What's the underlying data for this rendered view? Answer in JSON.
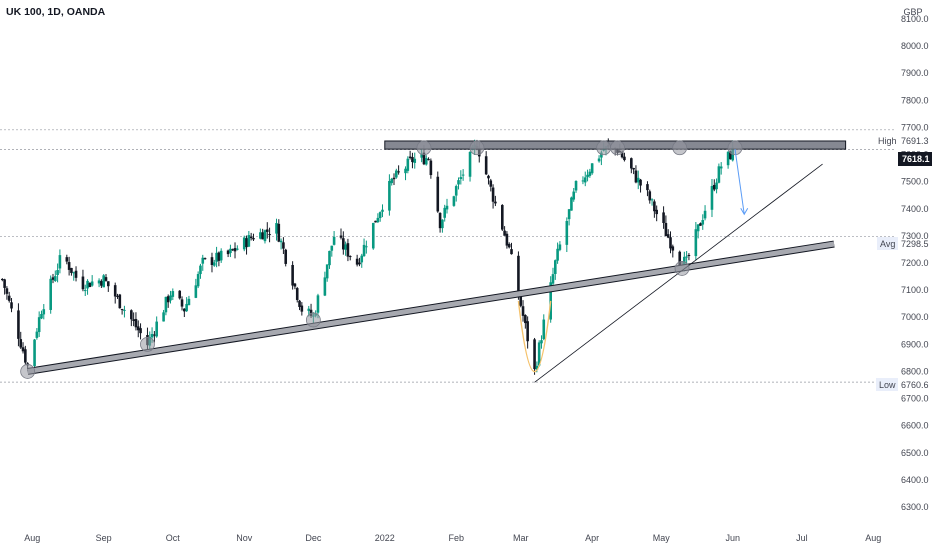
{
  "header": {
    "title": "UK 100, 1D, OANDA"
  },
  "price_axis": {
    "currency": "GBP",
    "ticks": [
      "8100.0",
      "8000.0",
      "7900.0",
      "7800.0",
      "7700.0",
      "7600.0",
      "7500.0",
      "7400.0",
      "7300.0",
      "7200.0",
      "7100.0",
      "7000.0",
      "6900.0",
      "6800.0",
      "6700.0",
      "6600.0",
      "6500.0",
      "6400.0",
      "6300.0"
    ],
    "tick_values": [
      8100,
      8000,
      7900,
      7800,
      7700,
      7600,
      7500,
      7400,
      7300,
      7200,
      7100,
      7000,
      6900,
      6800,
      6700,
      6600,
      6500,
      6400,
      6300
    ]
  },
  "time_axis": {
    "labels": [
      "Aug",
      "Sep",
      "Oct",
      "Nov",
      "Dec",
      "2022",
      "Feb",
      "Mar",
      "Apr",
      "May",
      "Jun",
      "Jul",
      "Aug"
    ],
    "dates": [
      "2021-08-01",
      "2021-09-01",
      "2021-10-01",
      "2021-11-01",
      "2021-12-01",
      "2022-01-01",
      "2022-02-01",
      "2022-03-01",
      "2022-04-01",
      "2022-05-01",
      "2022-06-01",
      "2022-07-01",
      "2022-08-01"
    ]
  },
  "markers": {
    "high": {
      "label": "High",
      "value_text": "7691.3",
      "value": 7691.3
    },
    "last": {
      "value_text": "7618.1",
      "value": 7618.1
    },
    "avg": {
      "label": "Avg",
      "value_text": "7298.5",
      "value": 7298.5
    },
    "low": {
      "label": "Low",
      "value_text": "6760.6",
      "value": 6760.6
    }
  },
  "colors": {
    "up": "#089981",
    "down": "#131722",
    "zone_fill": "#787b86",
    "zone_border": "#131722",
    "trendline": "#131722",
    "arrow": "#5b9cf6",
    "curve": "#f5c26b",
    "last_badge": "#131722",
    "axis_text": "#434651"
  },
  "chart_data": {
    "type": "candlestick",
    "title": "UK 100, 1D, OANDA",
    "ylim": [
      6230,
      8170
    ],
    "xlim": [
      "2021-07-18",
      "2022-08-10"
    ],
    "resistance_zone": {
      "upper": 7650,
      "lower": 7620,
      "from": "2022-01-01",
      "to": "2022-07-20"
    },
    "support_trendline": [
      {
        "date": "2021-07-30",
        "price": 6800
      },
      {
        "date": "2022-07-15",
        "price": 7270
      }
    ],
    "rising_trendline": [
      {
        "date": "2022-03-07",
        "price": 6760
      },
      {
        "date": "2022-07-10",
        "price": 7565
      }
    ],
    "projection_arrow": [
      {
        "date": "2022-06-02",
        "price": 7620
      },
      {
        "date": "2022-06-06",
        "price": 7380
      }
    ],
    "touch_points": [
      {
        "date": "2021-07-30",
        "price": 6800
      },
      {
        "date": "2021-09-20",
        "price": 6900
      },
      {
        "date": "2021-12-01",
        "price": 6990
      },
      {
        "date": "2022-01-18",
        "price": 7625
      },
      {
        "date": "2022-02-10",
        "price": 7625
      },
      {
        "date": "2022-04-06",
        "price": 7625
      },
      {
        "date": "2022-04-12",
        "price": 7625
      },
      {
        "date": "2022-05-09",
        "price": 7625
      },
      {
        "date": "2022-05-10",
        "price": 7180
      },
      {
        "date": "2022-06-02",
        "price": 7625
      }
    ],
    "curve_points": [
      {
        "date": "2022-02-28",
        "price": 7060
      },
      {
        "date": "2022-03-07",
        "price": 6760
      },
      {
        "date": "2022-03-14",
        "price": 7060
      }
    ],
    "path_keypoints": [
      {
        "date": "2021-07-19",
        "price": 7140
      },
      {
        "date": "2021-07-30",
        "price": 6820
      },
      {
        "date": "2021-08-05",
        "price": 7030
      },
      {
        "date": "2021-08-14",
        "price": 7230
      },
      {
        "date": "2021-08-22",
        "price": 7120
      },
      {
        "date": "2021-09-01",
        "price": 7140
      },
      {
        "date": "2021-09-10",
        "price": 7030
      },
      {
        "date": "2021-09-20",
        "price": 6900
      },
      {
        "date": "2021-09-30",
        "price": 7090
      },
      {
        "date": "2021-10-06",
        "price": 7030
      },
      {
        "date": "2021-10-14",
        "price": 7200
      },
      {
        "date": "2021-10-25",
        "price": 7230
      },
      {
        "date": "2021-11-05",
        "price": 7300
      },
      {
        "date": "2021-11-15",
        "price": 7330
      },
      {
        "date": "2021-11-26",
        "price": 7030
      },
      {
        "date": "2021-12-01",
        "price": 7000
      },
      {
        "date": "2021-12-10",
        "price": 7300
      },
      {
        "date": "2021-12-20",
        "price": 7200
      },
      {
        "date": "2022-01-04",
        "price": 7500
      },
      {
        "date": "2022-01-13",
        "price": 7580
      },
      {
        "date": "2022-01-20",
        "price": 7590
      },
      {
        "date": "2022-01-25",
        "price": 7350
      },
      {
        "date": "2022-02-10",
        "price": 7640
      },
      {
        "date": "2022-02-24",
        "price": 7250
      },
      {
        "date": "2022-03-07",
        "price": 6800
      },
      {
        "date": "2022-03-16",
        "price": 7200
      },
      {
        "date": "2022-03-25",
        "price": 7480
      },
      {
        "date": "2022-04-06",
        "price": 7620
      },
      {
        "date": "2022-04-12",
        "price": 7620
      },
      {
        "date": "2022-04-25",
        "price": 7450
      },
      {
        "date": "2022-05-09",
        "price": 7210
      },
      {
        "date": "2022-05-12",
        "price": 7200
      },
      {
        "date": "2022-05-20",
        "price": 7400
      },
      {
        "date": "2022-05-27",
        "price": 7560
      },
      {
        "date": "2022-06-01",
        "price": 7610
      }
    ]
  }
}
